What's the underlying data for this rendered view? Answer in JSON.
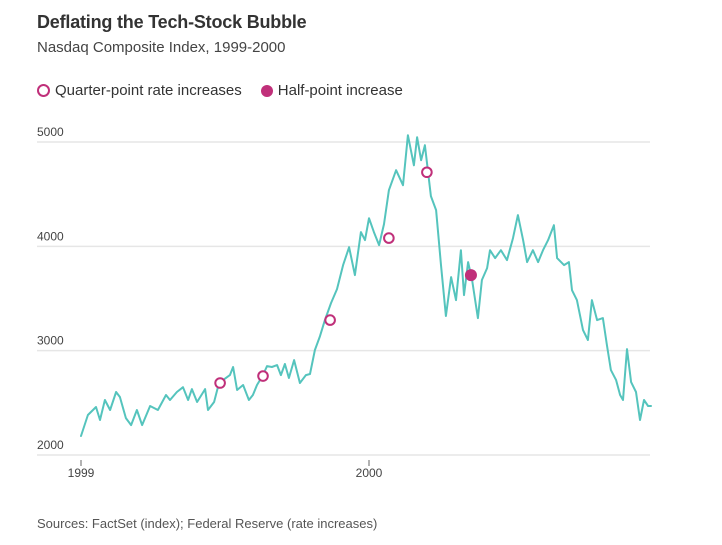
{
  "header": {
    "title": "Deflating the Tech-Stock Bubble",
    "subtitle": "Nasdaq Composite Index, 1999-2000"
  },
  "legend": {
    "quarter_label": "Quarter-point rate increases",
    "half_label": "Half-point increase"
  },
  "footer": {
    "source": "Sources: FactSet (index); Federal Reserve (rate increases)"
  },
  "colors": {
    "line": "#55c4bd",
    "marker": "#c0307a",
    "grid": "#e6e6e6"
  },
  "chart_data": {
    "type": "line",
    "title": "Deflating the Tech-Stock Bubble",
    "subtitle": "Nasdaq Composite Index, 1999-2000",
    "xlabel": "",
    "ylabel": "",
    "x_unit": "year (decimal)",
    "xlim": [
      1999.0,
      2000.99
    ],
    "ylim": [
      2000,
      5000
    ],
    "y_ticks": [
      {
        "value": 2000,
        "label": "2000"
      },
      {
        "value": 3000,
        "label": "3000"
      },
      {
        "value": 4000,
        "label": "4000"
      },
      {
        "value": 5000,
        "label": "5000"
      }
    ],
    "x_ticks": [
      {
        "value": 1999.0,
        "label": "1999"
      },
      {
        "value": 2000.0,
        "label": "2000"
      }
    ],
    "grid": true,
    "legend_position": "top-left",
    "series": [
      {
        "name": "Nasdaq Composite Index",
        "x": [
          1999.0,
          1999.024,
          1999.052,
          1999.066,
          1999.083,
          1999.101,
          1999.122,
          1999.135,
          1999.156,
          1999.174,
          1999.194,
          1999.212,
          1999.24,
          1999.267,
          1999.295,
          1999.309,
          1999.333,
          1999.354,
          1999.372,
          1999.385,
          1999.403,
          1999.431,
          1999.441,
          1999.462,
          1999.479,
          1999.517,
          1999.528,
          1999.542,
          1999.563,
          1999.583,
          1999.597,
          1999.611,
          1999.632,
          1999.646,
          1999.663,
          1999.681,
          1999.694,
          1999.708,
          1999.722,
          1999.74,
          1999.76,
          1999.781,
          1999.795,
          1999.812,
          1999.83,
          1999.847,
          1999.868,
          1999.889,
          1999.91,
          1999.931,
          1999.951,
          1999.972,
          1999.986,
          2000.0,
          2000.017,
          2000.035,
          2000.052,
          2000.069,
          2000.094,
          2000.118,
          2000.135,
          2000.156,
          2000.167,
          2000.181,
          2000.194,
          2000.215,
          2000.233,
          2000.25,
          2000.267,
          2000.285,
          2000.302,
          2000.319,
          2000.33,
          2000.344,
          2000.358,
          2000.378,
          2000.392,
          2000.41,
          2000.42,
          2000.438,
          2000.458,
          2000.479,
          2000.5,
          2000.517,
          2000.535,
          2000.549,
          2000.569,
          2000.587,
          2000.604,
          2000.622,
          2000.642,
          2000.653,
          2000.677,
          2000.694,
          2000.705,
          2000.722,
          2000.743,
          2000.76,
          2000.774,
          2000.792,
          2000.812,
          2000.826,
          2000.84,
          2000.858,
          2000.872,
          2000.882,
          2000.896,
          2000.91,
          2000.927,
          2000.941,
          2000.955,
          2000.969,
          2000.979
        ],
        "values": [
          2182,
          2383,
          2460,
          2335,
          2527,
          2431,
          2604,
          2556,
          2354,
          2287,
          2431,
          2287,
          2470,
          2431,
          2575,
          2527,
          2604,
          2650,
          2527,
          2632,
          2508,
          2632,
          2431,
          2508,
          2690,
          2766,
          2843,
          2623,
          2671,
          2527,
          2575,
          2671,
          2766,
          2852,
          2843,
          2862,
          2766,
          2872,
          2738,
          2910,
          2690,
          2766,
          2776,
          3006,
          3140,
          3293,
          3456,
          3590,
          3820,
          3992,
          3724,
          4136,
          4060,
          4270,
          4136,
          4012,
          4213,
          4538,
          4730,
          4586,
          5065,
          4777,
          5046,
          4826,
          4969,
          4481,
          4347,
          3820,
          3332,
          3705,
          3485,
          3963,
          3533,
          3849,
          3677,
          3312,
          3677,
          3791,
          3963,
          3887,
          3963,
          3868,
          4079,
          4299,
          4060,
          3849,
          3963,
          3849,
          3963,
          4060,
          4203,
          3887,
          3820,
          3849,
          3580,
          3485,
          3197,
          3102,
          3485,
          3293,
          3312,
          3054,
          2814,
          2718,
          2575,
          2527,
          3015,
          2699,
          2604,
          2335,
          2527,
          2470,
          2470
        ]
      }
    ],
    "markers": [
      {
        "type": "quarter-point rate increase",
        "style": "open",
        "x": 1999.483,
        "value": 2690
      },
      {
        "type": "quarter-point rate increase",
        "style": "open",
        "x": 1999.632,
        "value": 2757
      },
      {
        "type": "quarter-point rate increase",
        "style": "open",
        "x": 1999.865,
        "value": 3293
      },
      {
        "type": "quarter-point rate increase",
        "style": "open",
        "x": 2000.069,
        "value": 4079
      },
      {
        "type": "quarter-point rate increase",
        "style": "open",
        "x": 2000.201,
        "value": 4710
      },
      {
        "type": "half-point increase",
        "style": "filled",
        "x": 2000.354,
        "value": 3724
      }
    ]
  }
}
